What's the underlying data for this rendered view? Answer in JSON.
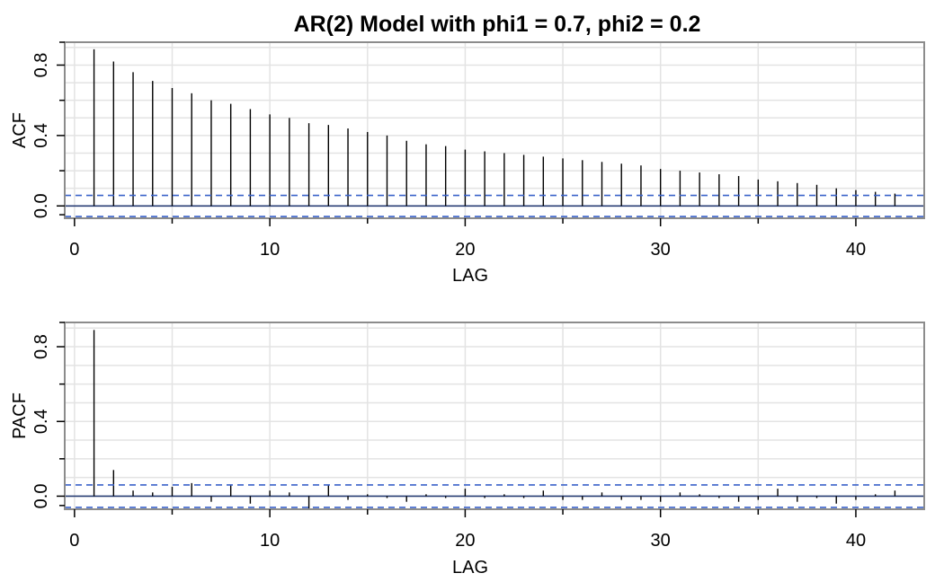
{
  "chart_data": [
    {
      "type": "bar",
      "mark": "lollipop-lines",
      "title": "AR(2) Model with phi1 = 0.7, phi2 = 0.2",
      "xlabel": "LAG",
      "ylabel": "ACF",
      "xlim": [
        -0.5,
        43.5
      ],
      "ylim": [
        -0.07,
        0.93
      ],
      "x_ticks": [
        0,
        10,
        20,
        30,
        40
      ],
      "x_minor_ticks": [
        5,
        15,
        25,
        35
      ],
      "y_ticks": [
        0.0,
        0.4,
        0.8
      ],
      "y_tick_labels": [
        "0.0",
        "0.4",
        "0.8"
      ],
      "y_minor_ticks": [
        0.2,
        0.6
      ],
      "grid": true,
      "ci": 0.06,
      "lags": [
        1,
        2,
        3,
        4,
        5,
        6,
        7,
        8,
        9,
        10,
        11,
        12,
        13,
        14,
        15,
        16,
        17,
        18,
        19,
        20,
        21,
        22,
        23,
        24,
        25,
        26,
        27,
        28,
        29,
        30,
        31,
        32,
        33,
        34,
        35,
        36,
        37,
        38,
        39,
        40,
        41,
        42
      ],
      "values": [
        0.89,
        0.82,
        0.76,
        0.71,
        0.67,
        0.64,
        0.6,
        0.58,
        0.55,
        0.52,
        0.5,
        0.47,
        0.46,
        0.44,
        0.42,
        0.4,
        0.37,
        0.35,
        0.34,
        0.32,
        0.31,
        0.3,
        0.29,
        0.28,
        0.27,
        0.26,
        0.25,
        0.24,
        0.23,
        0.21,
        0.2,
        0.19,
        0.18,
        0.17,
        0.15,
        0.14,
        0.13,
        0.12,
        0.1,
        0.09,
        0.08,
        0.07
      ],
      "colors": {
        "bars": "#000000",
        "ci": "#3a62c9",
        "zero": "#3a62c9",
        "grid": "#e3e3e3",
        "frame": "#8c8c8c"
      }
    },
    {
      "type": "bar",
      "mark": "lollipop-lines",
      "title": "",
      "xlabel": "LAG",
      "ylabel": "PACF",
      "xlim": [
        -0.5,
        43.5
      ],
      "ylim": [
        -0.07,
        0.93
      ],
      "x_ticks": [
        0,
        10,
        20,
        30,
        40
      ],
      "x_minor_ticks": [
        5,
        15,
        25,
        35
      ],
      "y_ticks": [
        0.0,
        0.4,
        0.8
      ],
      "y_tick_labels": [
        "0.0",
        "0.4",
        "0.8"
      ],
      "y_minor_ticks": [
        0.2,
        0.6
      ],
      "grid": true,
      "ci": 0.06,
      "lags": [
        1,
        2,
        3,
        4,
        5,
        6,
        7,
        8,
        9,
        10,
        11,
        12,
        13,
        14,
        15,
        16,
        17,
        18,
        19,
        20,
        21,
        22,
        23,
        24,
        25,
        26,
        27,
        28,
        29,
        30,
        31,
        32,
        33,
        34,
        35,
        36,
        37,
        38,
        39,
        40,
        41,
        42
      ],
      "values": [
        0.89,
        0.14,
        0.03,
        0.02,
        0.05,
        0.07,
        -0.03,
        0.06,
        -0.04,
        0.03,
        0.02,
        -0.07,
        0.06,
        -0.02,
        0.01,
        -0.01,
        -0.03,
        0.01,
        -0.01,
        0.04,
        -0.01,
        0.01,
        -0.01,
        0.03,
        -0.02,
        -0.02,
        0.02,
        -0.02,
        -0.02,
        -0.03,
        0.02,
        0.01,
        -0.01,
        -0.03,
        -0.02,
        0.04,
        -0.03,
        -0.01,
        -0.04,
        -0.02,
        0.01,
        0.03
      ],
      "colors": {
        "bars": "#000000",
        "ci": "#3a62c9",
        "zero": "#3a62c9",
        "grid": "#e3e3e3",
        "frame": "#8c8c8c"
      }
    }
  ]
}
